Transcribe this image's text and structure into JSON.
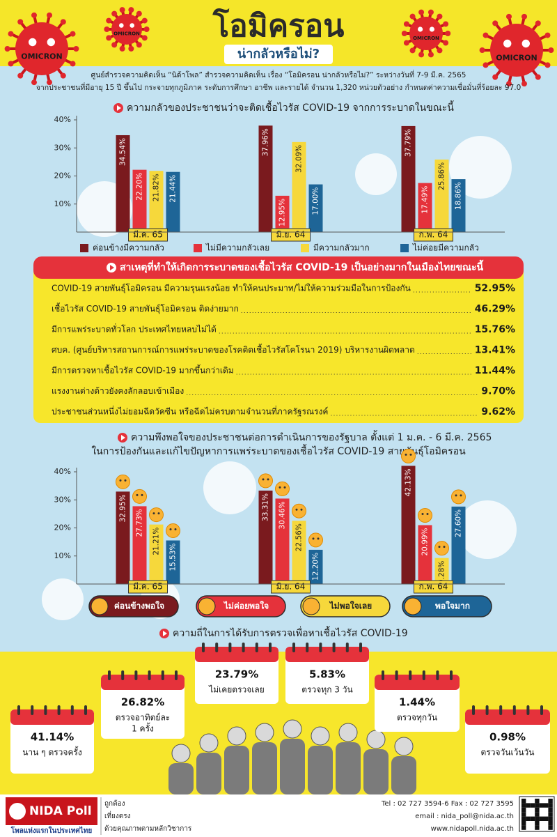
{
  "header": {
    "title": "โอมิครอน",
    "subtitle": "น่ากลัวหรือไม่?",
    "virus_label": "OMICRON",
    "intro": [
      "ศูนย์สำรวจความคิดเห็น “นิด้าโพล” สำรวจความคิดเห็น เรื่อง “โอมิครอน น่ากลัวหรือไม่?” ระหว่างวันที่ 7-9 มี.ค. 2565",
      "จากประชาชนที่มีอายุ 15 ปี ขึ้นไป กระจายทุกภูมิภาค ระดับการศึกษา อาชีพ และรายได้ จำนวน 1,320 หน่วยตัวอย่าง กำหนดค่าความเชื่อมั่นที่ร้อยละ 97.0"
    ]
  },
  "chart_data": [
    {
      "type": "bar",
      "title": "ความกลัวของประชาชนว่าจะติดเชื้อไวรัส COVID-19 จากการระบาดในขณะนี้",
      "categories": [
        "มี.ค. 65",
        "มิ.ย. 64",
        "ก.พ. 64"
      ],
      "series": [
        {
          "name": "ค่อนข้างมีความกลัว",
          "color": "#7a1a1e",
          "values": [
            34.54,
            37.96,
            37.79
          ],
          "value_labels": [
            "34.54%",
            "37.96%",
            "37.79%"
          ]
        },
        {
          "name": "ไม่มีความกลัวเลย",
          "color": "#e5323b",
          "values": [
            22.2,
            12.95,
            17.49
          ],
          "value_labels": [
            "22.20%",
            "12.95%",
            "17.49%"
          ]
        },
        {
          "name": "มีความกลัวมาก",
          "color": "#f6d83b",
          "values": [
            21.82,
            32.09,
            25.86
          ],
          "value_labels": [
            "21.82%",
            "32.09%",
            "25.86%"
          ]
        },
        {
          "name": "ไม่ค่อยมีความกลัว",
          "color": "#1e6597",
          "values": [
            21.44,
            17,
            18.86
          ],
          "value_labels": [
            "21.44%",
            "17.00%",
            "18.86%"
          ]
        }
      ],
      "ylim": [
        0,
        40
      ],
      "yticks": [
        {
          "value": 10,
          "label": "10%"
        },
        {
          "value": 20,
          "label": "20%"
        },
        {
          "value": 30,
          "label": "30%"
        },
        {
          "value": 40,
          "label": "40%"
        }
      ],
      "legend": "bottom"
    },
    {
      "type": "bar",
      "title": "ความพึงพอใจของประชาชนต่อการดำเนินการของรัฐบาล ตั้งแต่ 1 ม.ค. - 6 มี.ค. 2565",
      "subtitle": "ในการป้องกันและแก้ไขปัญหาการแพร่ระบาดของเชื้อไวรัส COVID-19 สายพันธุ์โอมิครอน",
      "categories": [
        "มี.ค. 65",
        "มิ.ย. 64",
        "ก.พ. 64"
      ],
      "series": [
        {
          "name": "ค่อนข้างพอใจ",
          "color": "#7a1a1e",
          "values": [
            32.95,
            33.31,
            42.13
          ],
          "value_labels": [
            "32.95%",
            "33.31%",
            "42.13%"
          ]
        },
        {
          "name": "ไม่ค่อยพอใจ",
          "color": "#e5323b",
          "values": [
            27.73,
            30.46,
            20.99
          ],
          "value_labels": [
            "27.73%",
            "30.46%",
            "20.99%"
          ]
        },
        {
          "name": "ไม่พอใจเลย",
          "color": "#f6d83b",
          "values": [
            21.21,
            22.56,
            9.28
          ],
          "value_labels": [
            "21.21%",
            "22.56%",
            "9.28%"
          ]
        },
        {
          "name": "พอใจมาก",
          "color": "#1e6597",
          "values": [
            15.53,
            12.2,
            27.6
          ],
          "value_labels": [
            "15.53%",
            "12.20%",
            "27.60%"
          ]
        }
      ],
      "ylim": [
        0,
        40
      ],
      "yticks": [
        {
          "value": 10,
          "label": "10%"
        },
        {
          "value": 20,
          "label": "20%"
        },
        {
          "value": 30,
          "label": "30%"
        },
        {
          "value": 40,
          "label": "40%"
        }
      ],
      "legend": "bottom"
    }
  ],
  "reasons": {
    "title": "สาเหตุที่ทำให้เกิดการระบาดของเชื้อไวรัส COVID-19 เป็นอย่างมากในเมืองไทยขณะนี้",
    "items": [
      {
        "text": "COVID-19 สายพันธุ์โอมิครอน มีความรุนแรงน้อย ทำให้คนประมาท/ไม่ให้ความร่วมมือในการป้องกัน",
        "value": "52.95%"
      },
      {
        "text": "เชื้อไวรัส COVID-19 สายพันธุ์โอมิครอน ติดง่ายมาก",
        "value": "46.29%"
      },
      {
        "text": "มีการแพร่ระบาดทั่วโลก ประเทศไทยหลบไม่ได้",
        "value": "15.76%"
      },
      {
        "text": "ศบค. (ศูนย์บริหารสถานการณ์การแพร่ระบาดของโรคติดเชื้อไวรัสโคโรนา 2019) บริหารงานผิดพลาด",
        "value": "13.41%"
      },
      {
        "text": "มีการตรวจหาเชื้อไวรัส COVID-19 มากขึ้นกว่าเดิม",
        "value": "11.44%"
      },
      {
        "text": "แรงงานต่างด้าวยังคงลักลอบเข้าเมือง",
        "value": "9.70%"
      },
      {
        "text": "ประชาชนส่วนหนึ่งไม่ยอมฉีดวัคซีน หรือฉีดไม่ครบตามจำนวนที่ภาครัฐรณรงค์",
        "value": "9.62%"
      }
    ]
  },
  "testing": {
    "title": "ความถี่ในการได้รับการตรวจเพื่อหาเชื้อไวรัส COVID-19",
    "items": [
      {
        "value": "41.14%",
        "label": [
          "นาน ๆ ตรวจครั้ง"
        ]
      },
      {
        "value": "26.82%",
        "label": [
          "ตรวจอาทิตย์ละ",
          "1 ครั้ง"
        ]
      },
      {
        "value": "23.79%",
        "label": [
          "ไม่เคยตรวจเลย"
        ]
      },
      {
        "value": "5.83%",
        "label": [
          "ตรวจทุก 3 วัน"
        ]
      },
      {
        "value": "1.44%",
        "label": [
          "ตรวจทุกวัน"
        ]
      },
      {
        "value": "0.98%",
        "label": [
          "ตรวจวันเว้นวัน"
        ]
      }
    ]
  },
  "footer": {
    "logo": "NIDA Poll",
    "logo_tagline": "โพลแห่งแรกในประเทศไทย",
    "taglines": [
      "ถูกต้อง",
      "เที่ยงตรง",
      "ด้วยคุณภาพตามหลักวิชาการ"
    ],
    "contact": [
      "Tel : 02 727 3594-6 Fax : 02 727 3595",
      "email : nida_poll@nida.ac.th",
      "www.nidapoll.nida.ac.th"
    ]
  }
}
